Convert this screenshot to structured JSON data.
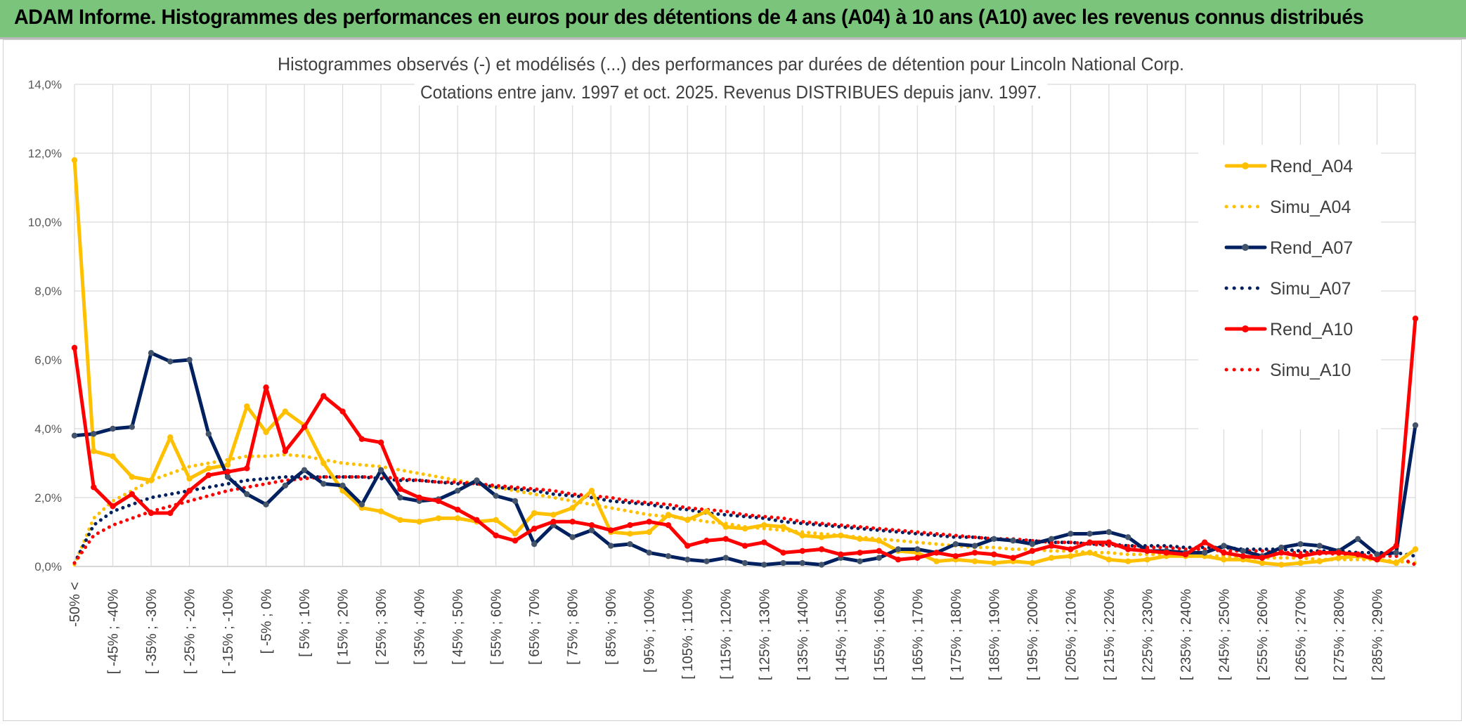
{
  "banner": {
    "title": "ADAM Informe. Histogrammes des performances en euros pour des détentions de 4 ans (A04) à 10 ans (A10) avec les revenus connus distribués"
  },
  "chart_data": {
    "type": "line",
    "title": "Histogrammes observés (-) et modélisés (...) des performances par durées de détention pour Lincoln National Corp.",
    "subtitle": "Cotations entre janv. 1997 et oct. 2025. Revenus DISTRIBUES depuis janv. 1997.",
    "ylim": [
      0,
      14
    ],
    "yticks": [
      "0,0%",
      "2,0%",
      "4,0%",
      "6,0%",
      "8,0%",
      "10,0%",
      "12,0%",
      "14,0%"
    ],
    "grid": true,
    "legend_position": "right",
    "x_point_count": 71,
    "x_tick_labels": [
      "-50% <",
      "[ -45% ; -40%",
      "[ -35% ; -30%",
      "[ -25% ; -20%",
      "[ -15% ; -10%",
      "[ -5% ; 0%",
      "[ 5% ; 10%",
      "[ 15% ; 20%",
      "[ 25% ; 30%",
      "[ 35% ; 40%",
      "[ 45% ; 50%",
      "[ 55% ; 60%",
      "[ 65% ; 70%",
      "[ 75% ; 80%",
      "[ 85% ; 90%",
      "[ 95% ; 100%",
      "[ 105% ; 110%",
      "[ 115% ; 120%",
      "[ 125% ; 130%",
      "[ 135% ; 140%",
      "[ 145% ; 150%",
      "[ 155% ; 160%",
      "[ 165% ; 170%",
      "[ 175% ; 180%",
      "[ 185% ; 190%",
      "[ 195% ; 200%",
      "[ 205% ; 210%",
      "[ 215% ; 220%",
      "[ 225% ; 230%",
      "[ 235% ; 240%",
      "[ 245% ; 250%",
      "[ 255% ; 260%",
      "[ 265% ; 270%",
      "[ 275% ; 280%",
      "[ 285% ; 290%"
    ],
    "series": [
      {
        "name": "Rend_A04",
        "style": "solid",
        "markers": true,
        "color": "#ffc000",
        "values": [
          11.8,
          3.35,
          3.2,
          2.6,
          2.5,
          3.75,
          2.55,
          2.85,
          2.95,
          4.65,
          3.9,
          4.5,
          4.1,
          3.0,
          2.2,
          1.7,
          1.6,
          1.35,
          1.3,
          1.4,
          1.4,
          1.3,
          1.35,
          0.95,
          1.55,
          1.5,
          1.7,
          2.2,
          1.0,
          0.95,
          1.0,
          1.5,
          1.35,
          1.6,
          1.15,
          1.1,
          1.2,
          1.15,
          0.9,
          0.85,
          0.9,
          0.8,
          0.75,
          0.45,
          0.4,
          0.15,
          0.2,
          0.15,
          0.1,
          0.15,
          0.1,
          0.25,
          0.3,
          0.4,
          0.2,
          0.15,
          0.2,
          0.3,
          0.3,
          0.3,
          0.2,
          0.2,
          0.1,
          0.05,
          0.1,
          0.15,
          0.25,
          0.3,
          0.2,
          0.1,
          0.5
        ]
      },
      {
        "name": "Simu_A04",
        "style": "dotted",
        "markers": false,
        "color": "#ffc000",
        "values": [
          0.05,
          1.4,
          1.9,
          2.2,
          2.5,
          2.7,
          2.9,
          3.0,
          3.1,
          3.2,
          3.2,
          3.25,
          3.2,
          3.1,
          3.0,
          2.95,
          2.9,
          2.8,
          2.7,
          2.6,
          2.5,
          2.4,
          2.3,
          2.2,
          2.1,
          2.0,
          1.9,
          1.8,
          1.7,
          1.6,
          1.5,
          1.45,
          1.4,
          1.3,
          1.25,
          1.15,
          1.1,
          1.05,
          1.0,
          0.95,
          0.9,
          0.85,
          0.8,
          0.75,
          0.7,
          0.65,
          0.6,
          0.55,
          0.55,
          0.5,
          0.5,
          0.45,
          0.45,
          0.4,
          0.4,
          0.35,
          0.35,
          0.35,
          0.3,
          0.3,
          0.3,
          0.25,
          0.25,
          0.25,
          0.25,
          0.2,
          0.2,
          0.2,
          0.2,
          0.15,
          0.1
        ]
      },
      {
        "name": "Rend_A07",
        "style": "solid",
        "markers": true,
        "color": "#002060",
        "values": [
          3.8,
          3.85,
          4.0,
          4.05,
          6.2,
          5.95,
          6.0,
          3.85,
          2.6,
          2.1,
          1.8,
          2.35,
          2.8,
          2.4,
          2.35,
          1.8,
          2.8,
          2.0,
          1.9,
          1.95,
          2.2,
          2.5,
          2.05,
          1.9,
          0.65,
          1.2,
          0.85,
          1.05,
          0.6,
          0.65,
          0.4,
          0.3,
          0.2,
          0.15,
          0.25,
          0.1,
          0.05,
          0.1,
          0.1,
          0.05,
          0.25,
          0.15,
          0.25,
          0.5,
          0.5,
          0.4,
          0.65,
          0.6,
          0.8,
          0.75,
          0.65,
          0.8,
          0.95,
          0.95,
          1.0,
          0.85,
          0.45,
          0.45,
          0.4,
          0.4,
          0.6,
          0.45,
          0.3,
          0.55,
          0.65,
          0.6,
          0.45,
          0.8,
          0.35,
          0.4,
          4.1
        ]
      },
      {
        "name": "Simu_A07",
        "style": "dotted",
        "markers": false,
        "color": "#002060",
        "values": [
          0.1,
          1.2,
          1.6,
          1.8,
          2.0,
          2.1,
          2.2,
          2.3,
          2.4,
          2.5,
          2.55,
          2.6,
          2.6,
          2.6,
          2.6,
          2.6,
          2.55,
          2.5,
          2.5,
          2.45,
          2.4,
          2.4,
          2.3,
          2.25,
          2.2,
          2.1,
          2.05,
          2.0,
          1.9,
          1.85,
          1.8,
          1.7,
          1.65,
          1.55,
          1.5,
          1.45,
          1.4,
          1.3,
          1.25,
          1.2,
          1.15,
          1.1,
          1.05,
          1.0,
          0.95,
          0.9,
          0.85,
          0.85,
          0.8,
          0.75,
          0.75,
          0.7,
          0.7,
          0.65,
          0.65,
          0.6,
          0.6,
          0.6,
          0.55,
          0.55,
          0.55,
          0.5,
          0.5,
          0.5,
          0.45,
          0.45,
          0.45,
          0.4,
          0.4,
          0.4,
          0.3
        ]
      },
      {
        "name": "Rend_A10",
        "style": "solid",
        "markers": true,
        "color": "#ff0000",
        "values": [
          6.35,
          2.3,
          1.75,
          2.1,
          1.55,
          1.55,
          2.2,
          2.65,
          2.75,
          2.85,
          5.2,
          3.35,
          4.05,
          4.95,
          4.5,
          3.7,
          3.6,
          2.25,
          2.0,
          1.9,
          1.65,
          1.35,
          0.9,
          0.75,
          1.1,
          1.3,
          1.3,
          1.2,
          1.05,
          1.2,
          1.3,
          1.2,
          0.6,
          0.75,
          0.8,
          0.6,
          0.7,
          0.4,
          0.45,
          0.5,
          0.35,
          0.4,
          0.45,
          0.2,
          0.25,
          0.4,
          0.3,
          0.4,
          0.35,
          0.25,
          0.45,
          0.6,
          0.5,
          0.7,
          0.7,
          0.5,
          0.45,
          0.4,
          0.35,
          0.7,
          0.4,
          0.3,
          0.25,
          0.4,
          0.3,
          0.4,
          0.4,
          0.35,
          0.2,
          0.6,
          7.2
        ]
      },
      {
        "name": "Simu_A10",
        "style": "dotted",
        "markers": false,
        "color": "#ff0000",
        "values": [
          0.1,
          0.9,
          1.2,
          1.4,
          1.6,
          1.75,
          1.9,
          2.05,
          2.2,
          2.3,
          2.4,
          2.5,
          2.55,
          2.6,
          2.6,
          2.6,
          2.6,
          2.55,
          2.5,
          2.45,
          2.45,
          2.4,
          2.35,
          2.3,
          2.25,
          2.2,
          2.1,
          2.05,
          2.0,
          1.9,
          1.85,
          1.8,
          1.7,
          1.65,
          1.6,
          1.5,
          1.45,
          1.4,
          1.3,
          1.25,
          1.2,
          1.15,
          1.1,
          1.05,
          1.0,
          0.95,
          0.9,
          0.85,
          0.8,
          0.8,
          0.75,
          0.7,
          0.7,
          0.65,
          0.6,
          0.6,
          0.55,
          0.55,
          0.5,
          0.5,
          0.45,
          0.45,
          0.45,
          0.4,
          0.4,
          0.4,
          0.35,
          0.35,
          0.3,
          0.3,
          0.05
        ]
      }
    ]
  }
}
